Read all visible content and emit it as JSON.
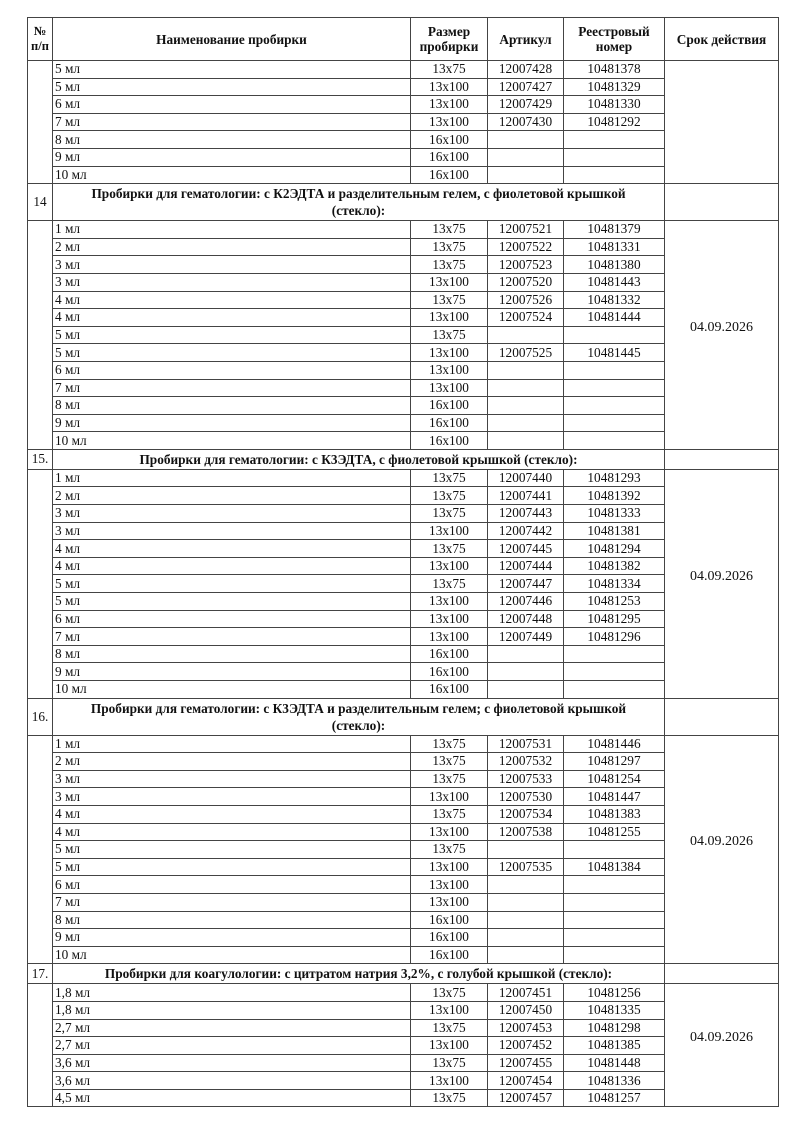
{
  "header": {
    "num": "№ п/п",
    "name": "Наименование пробирки",
    "size": "Размер пробирки",
    "article": "Артикул",
    "registry": "Реестровый номер",
    "expiry": "Срок действия"
  },
  "sections": [
    {
      "num": "",
      "title": "",
      "expiry": "",
      "rows": [
        [
          "5 мл",
          "13x75",
          "12007428",
          "10481378"
        ],
        [
          "5 мл",
          "13x100",
          "12007427",
          "10481329"
        ],
        [
          "6 мл",
          "13x100",
          "12007429",
          "10481330"
        ],
        [
          "7 мл",
          "13x100",
          "12007430",
          "10481292"
        ],
        [
          "8 мл",
          "16x100",
          "",
          ""
        ],
        [
          "9 мл",
          "16x100",
          "",
          ""
        ],
        [
          "10 мл",
          "16x100",
          "",
          ""
        ]
      ]
    },
    {
      "num": "14",
      "title": "Пробирки для гематологии: с К2ЭДТА и разделительным гелем, с фиолетовой крышкой (стекло):",
      "expiry": "04.09.2026",
      "rows": [
        [
          "1 мл",
          "13x75",
          "12007521",
          "10481379"
        ],
        [
          "2 мл",
          "13x75",
          "12007522",
          "10481331"
        ],
        [
          "3 мл",
          "13x75",
          "12007523",
          "10481380"
        ],
        [
          "3 мл",
          "13x100",
          "12007520",
          "10481443"
        ],
        [
          "4 мл",
          "13x75",
          "12007526",
          "10481332"
        ],
        [
          "4 мл",
          "13x100",
          "12007524",
          "10481444"
        ],
        [
          "5 мл",
          "13x75",
          "",
          ""
        ],
        [
          "5 мл",
          "13x100",
          "12007525",
          "10481445"
        ],
        [
          "6 мл",
          "13x100",
          "",
          ""
        ],
        [
          "7 мл",
          "13x100",
          "",
          ""
        ],
        [
          "8 мл",
          "16x100",
          "",
          ""
        ],
        [
          "9 мл",
          "16x100",
          "",
          ""
        ],
        [
          "10 мл",
          "16x100",
          "",
          ""
        ]
      ]
    },
    {
      "num": "15.",
      "title": "Пробирки для гематологии: с К3ЭДТА, с фиолетовой крышкой (стекло):",
      "expiry": "04.09.2026",
      "rows": [
        [
          "1 мл",
          "13x75",
          "12007440",
          "10481293"
        ],
        [
          "2 мл",
          "13x75",
          "12007441",
          "10481392"
        ],
        [
          "3 мл",
          "13x75",
          "12007443",
          "10481333"
        ],
        [
          "3 мл",
          "13x100",
          "12007442",
          "10481381"
        ],
        [
          "4 мл",
          "13x75",
          "12007445",
          "10481294"
        ],
        [
          "4 мл",
          "13x100",
          "12007444",
          "10481382"
        ],
        [
          "5 мл",
          "13x75",
          "12007447",
          "10481334"
        ],
        [
          "5 мл",
          "13x100",
          "12007446",
          "10481253"
        ],
        [
          "6 мл",
          "13x100",
          "12007448",
          "10481295"
        ],
        [
          "7 мл",
          "13x100",
          "12007449",
          "10481296"
        ],
        [
          "8 мл",
          "16x100",
          "",
          ""
        ],
        [
          "9 мл",
          "16x100",
          "",
          ""
        ],
        [
          "10 мл",
          "16x100",
          "",
          ""
        ]
      ]
    },
    {
      "num": "16.",
      "title": "Пробирки для гематологии: с К3ЭДТА и разделительным гелем; с фиолетовой крышкой (стекло):",
      "expiry": "04.09.2026",
      "rows": [
        [
          "1 мл",
          "13x75",
          "12007531",
          "10481446"
        ],
        [
          "2 мл",
          "13x75",
          "12007532",
          "10481297"
        ],
        [
          "3 мл",
          "13x75",
          "12007533",
          "10481254"
        ],
        [
          "3 мл",
          "13x100",
          "12007530",
          "10481447"
        ],
        [
          "4 мл",
          "13x75",
          "12007534",
          "10481383"
        ],
        [
          "4 мл",
          "13x100",
          "12007538",
          "10481255"
        ],
        [
          "5 мл",
          "13x75",
          "",
          ""
        ],
        [
          "5 мл",
          "13x100",
          "12007535",
          "10481384"
        ],
        [
          "6 мл",
          "13x100",
          "",
          ""
        ],
        [
          "7 мл",
          "13x100",
          "",
          ""
        ],
        [
          "8 мл",
          "16x100",
          "",
          ""
        ],
        [
          "9 мл",
          "16x100",
          "",
          ""
        ],
        [
          "10 мл",
          "16x100",
          "",
          ""
        ]
      ]
    },
    {
      "num": "17.",
      "title": "Пробирки для коагулологии: с цитратом натрия 3,2%, с голубой крышкой (стекло):",
      "expiry": "04.09.2026",
      "rows": [
        [
          "1,8 мл",
          "13x75",
          "12007451",
          "10481256"
        ],
        [
          "1,8 мл",
          "13x100",
          "12007450",
          "10481335"
        ],
        [
          "2,7 мл",
          "13x75",
          "12007453",
          "10481298"
        ],
        [
          "2,7 мл",
          "13x100",
          "12007452",
          "10481385"
        ],
        [
          "3,6 мл",
          "13x75",
          "12007455",
          "10481448"
        ],
        [
          "3,6 мл",
          "13x100",
          "12007454",
          "10481336"
        ],
        [
          "4,5 мл",
          "13x75",
          "12007457",
          "10481257"
        ]
      ]
    }
  ]
}
